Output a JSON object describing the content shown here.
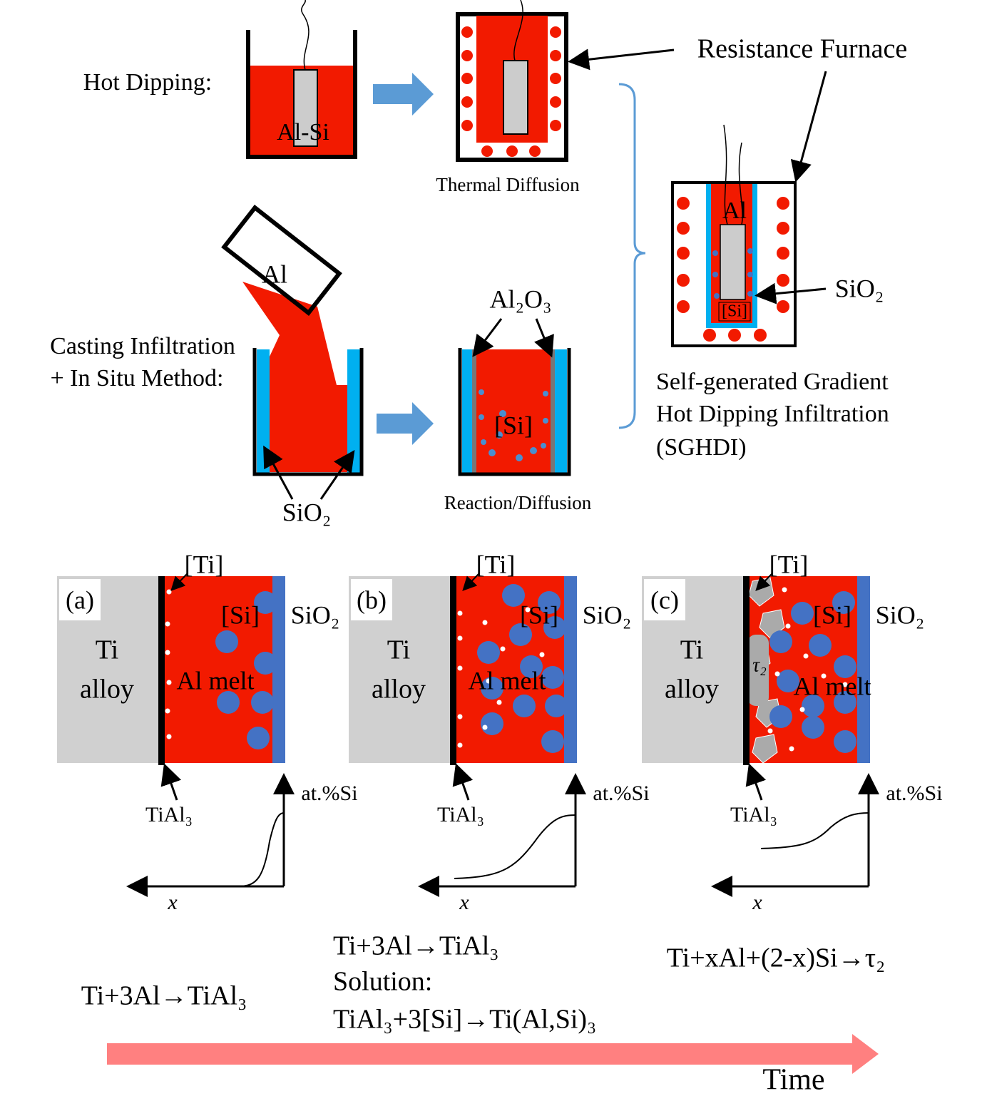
{
  "top": {
    "hot_dipping_label": "Hot Dipping:",
    "al_si_label": "Al-Si",
    "thermal_diffusion_label": "Thermal Diffusion",
    "resistance_furnace_label": "Resistance Furnace",
    "casting_label": [
      "Casting Infiltration",
      "+ In Situ Method:"
    ],
    "al_label": "Al",
    "sio2_label": "SiO₂",
    "al2o3_label": "Al₂O₃",
    "si_label": "[Si]",
    "reaction_label": "Reaction/Diffusion",
    "sghdi": {
      "al": "Al",
      "si": "[Si]",
      "sio2": "SiO₂",
      "caption": [
        "Self-generated Gradient",
        "Hot Dipping Infiltration",
        "(SGHDI)"
      ]
    }
  },
  "panels": [
    {
      "letter": "(a)",
      "ti": "[Ti]",
      "si": "[Si]",
      "sio2": "SiO₂",
      "alloy": [
        "Ti",
        "alloy"
      ],
      "melt": "Al melt",
      "tial3": "TiAl₃",
      "axis_y": "at.%Si",
      "axis_x": "x",
      "reaction": [
        "Ti+3Al→TiAl₃"
      ]
    },
    {
      "letter": "(b)",
      "ti": "[Ti]",
      "si": "[Si]",
      "sio2": "SiO₂",
      "alloy": [
        "Ti",
        "alloy"
      ],
      "melt": "Al melt",
      "tial3": "TiAl₃",
      "axis_y": "at.%Si",
      "axis_x": "x",
      "reaction": [
        "Ti+3Al→TiAl₃",
        "Solution:",
        "TiAl₃+3[Si]→Ti(Al,Si)₃"
      ]
    },
    {
      "letter": "(c)",
      "ti": "[Ti]",
      "si": "[Si]",
      "sio2": "SiO₂",
      "alloy": [
        "Ti",
        "alloy"
      ],
      "melt": "Al melt",
      "tial3": "TiAl₃",
      "axis_y": "at.%Si",
      "axis_x": "x",
      "tau": "τ₂",
      "reaction": [
        "Ti+xAl+(2-x)Si→τ₂"
      ]
    }
  ],
  "time_label": "Time"
}
